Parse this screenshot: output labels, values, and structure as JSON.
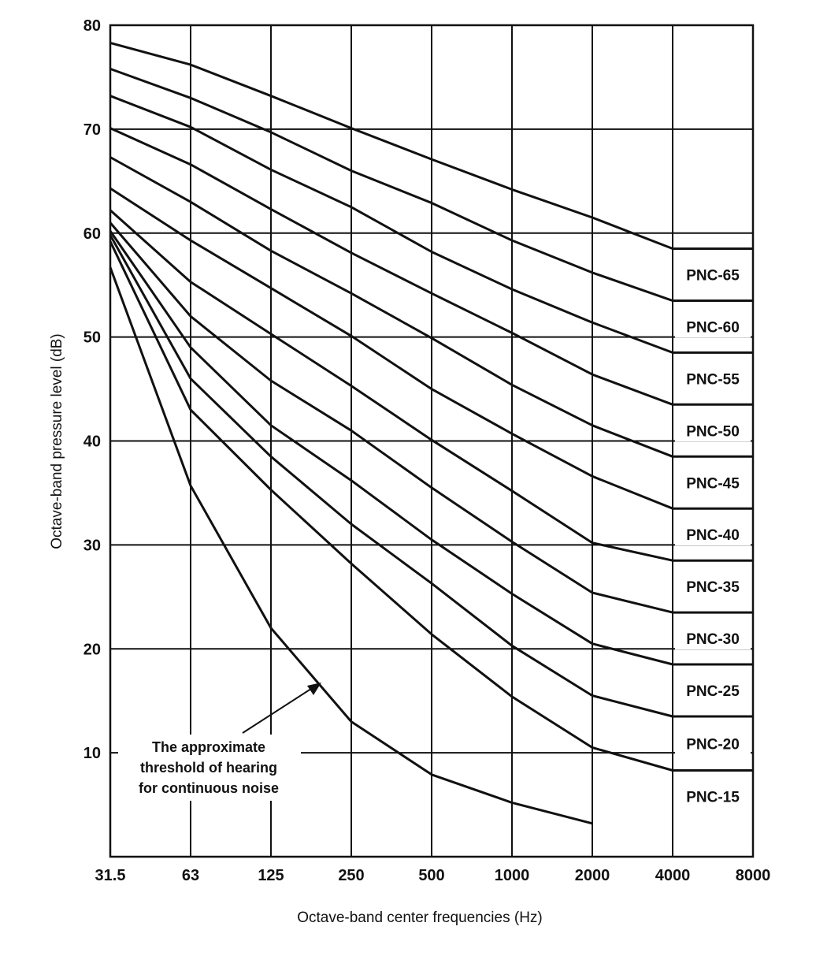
{
  "chart_data": {
    "type": "line",
    "title": "",
    "xlabel": "Octave-band center frequencies (Hz)",
    "ylabel": "Octave-band pressure level (dB)",
    "categories": [
      "31.5",
      "63",
      "125",
      "250",
      "500",
      "1000",
      "2000",
      "4000",
      "8000"
    ],
    "y_ticks": [
      10,
      20,
      30,
      40,
      50,
      60,
      70,
      80
    ],
    "ylim": [
      0,
      80
    ],
    "grid": true,
    "series": [
      {
        "name": "PNC-65",
        "values": [
          78.3,
          76.2,
          73.2,
          70.1,
          67.1,
          64.2,
          61.5,
          58.5,
          58.5
        ]
      },
      {
        "name": "PNC-60",
        "values": [
          75.8,
          73.0,
          69.7,
          66.0,
          62.9,
          59.3,
          56.2,
          53.5,
          53.5
        ]
      },
      {
        "name": "PNC-55",
        "values": [
          73.2,
          70.2,
          66.1,
          62.5,
          58.2,
          54.6,
          51.4,
          48.5,
          48.5
        ]
      },
      {
        "name": "PNC-50",
        "values": [
          70.1,
          66.6,
          62.3,
          58.1,
          54.2,
          50.4,
          46.4,
          43.5,
          43.5
        ]
      },
      {
        "name": "PNC-45",
        "values": [
          67.3,
          63.0,
          58.3,
          54.2,
          49.9,
          45.4,
          41.5,
          38.5,
          38.5
        ]
      },
      {
        "name": "PNC-40",
        "values": [
          64.3,
          59.3,
          54.7,
          50.1,
          45.0,
          40.7,
          36.6,
          33.5,
          33.5
        ]
      },
      {
        "name": "PNC-35",
        "values": [
          62.2,
          55.3,
          50.3,
          45.3,
          40.1,
          35.2,
          30.2,
          28.5,
          28.5
        ]
      },
      {
        "name": "PNC-30",
        "values": [
          61.0,
          52.0,
          45.8,
          41.0,
          35.5,
          30.3,
          25.4,
          23.5,
          23.5
        ]
      },
      {
        "name": "PNC-25",
        "values": [
          60.2,
          49.0,
          41.5,
          36.2,
          30.5,
          25.3,
          20.5,
          18.5,
          18.5
        ]
      },
      {
        "name": "PNC-20",
        "values": [
          59.8,
          46.0,
          38.5,
          32.0,
          26.3,
          20.3,
          15.5,
          13.5,
          13.5
        ]
      },
      {
        "name": "PNC-15",
        "values": [
          59.2,
          43.0,
          35.3,
          28.2,
          21.4,
          15.4,
          10.5,
          8.3,
          8.3
        ]
      }
    ],
    "threshold_curve": {
      "values": [
        56.7,
        35.7,
        22.0,
        13.0,
        7.9,
        5.2,
        3.2
      ]
    },
    "annotation": {
      "lines": [
        "The approximate",
        "threshold of hearing",
        "for continuous noise"
      ]
    }
  }
}
